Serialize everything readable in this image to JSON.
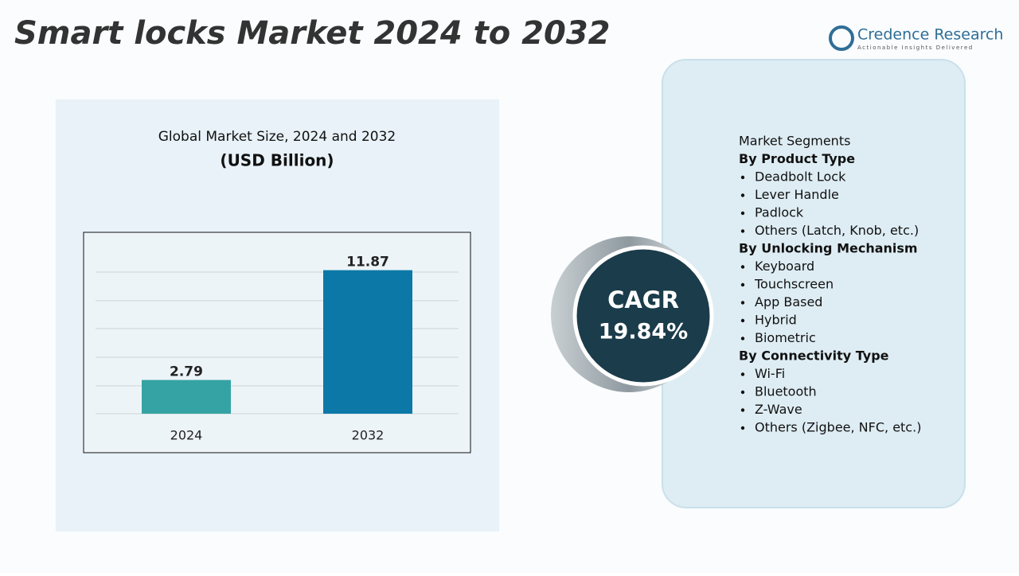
{
  "title": "Smart locks Market 2024 to 2032",
  "logo": {
    "name": "Credence Research",
    "tagline": "Actionable Insights Delivered"
  },
  "chart_data": {
    "type": "bar",
    "title": "Global Market Size, 2024 and 2032",
    "subtitle": "(USD Billion)",
    "categories": [
      "2024",
      "2032"
    ],
    "values": [
      2.79,
      11.87
    ],
    "colors": [
      "#35a3a3",
      "#0b78a8"
    ],
    "ylim": [
      0,
      12.5
    ]
  },
  "cagr": {
    "label": "CAGR",
    "value": "19.84%"
  },
  "segments": {
    "title": "Market Segments",
    "groups": [
      {
        "heading": "By Product Type",
        "items": [
          "Deadbolt Lock",
          "Lever Handle",
          "Padlock",
          "Others (Latch, Knob, etc.)"
        ]
      },
      {
        "heading": "By Unlocking Mechanism",
        "items": [
          "Keyboard",
          "Touchscreen",
          "App Based",
          "Hybrid",
          "Biometric"
        ]
      },
      {
        "heading": "By Connectivity Type",
        "items": [
          "Wi-Fi",
          "Bluetooth",
          "Z-Wave",
          "Others (Zigbee, NFC, etc.)"
        ]
      }
    ]
  }
}
